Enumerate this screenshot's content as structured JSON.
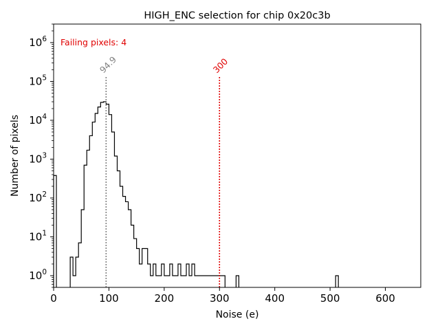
{
  "chart_data": {
    "type": "histogram",
    "title": "HIGH_ENC selection for chip 0x20c3b",
    "xlabel": "Noise (e)",
    "ylabel": "Number of pixels",
    "x_ticks": [
      0,
      100,
      200,
      300,
      400,
      500,
      600
    ],
    "y_ticks": [
      {
        "exp": "0",
        "value": 1
      },
      {
        "exp": "1",
        "value": 10
      },
      {
        "exp": "2",
        "value": 100
      },
      {
        "exp": "3",
        "value": 1000
      },
      {
        "exp": "4",
        "value": 10000
      },
      {
        "exp": "5",
        "value": 100000
      },
      {
        "exp": "6",
        "value": 1000000
      }
    ],
    "tick_base": "10",
    "xlim": [
      0,
      664
    ],
    "ylim": [
      0.5,
      3000000
    ],
    "yscale": "log",
    "bin_width": 5,
    "bins": [
      [
        0,
        5,
        380
      ],
      [
        30,
        35,
        3
      ],
      [
        35,
        40,
        1
      ],
      [
        40,
        45,
        3
      ],
      [
        45,
        50,
        7
      ],
      [
        50,
        55,
        50
      ],
      [
        55,
        60,
        700
      ],
      [
        60,
        65,
        1700
      ],
      [
        65,
        70,
        4000
      ],
      [
        70,
        75,
        9000
      ],
      [
        75,
        80,
        15000
      ],
      [
        80,
        85,
        22000
      ],
      [
        85,
        90,
        29000
      ],
      [
        90,
        95,
        30000
      ],
      [
        95,
        100,
        26000
      ],
      [
        100,
        105,
        14000
      ],
      [
        105,
        110,
        5000
      ],
      [
        110,
        115,
        1200
      ],
      [
        115,
        120,
        500
      ],
      [
        120,
        125,
        200
      ],
      [
        125,
        130,
        110
      ],
      [
        130,
        135,
        80
      ],
      [
        135,
        140,
        50
      ],
      [
        140,
        145,
        20
      ],
      [
        145,
        150,
        9
      ],
      [
        150,
        155,
        5
      ],
      [
        155,
        160,
        2
      ],
      [
        160,
        165,
        5
      ],
      [
        165,
        170,
        5
      ],
      [
        170,
        175,
        2
      ],
      [
        175,
        180,
        1
      ],
      [
        180,
        185,
        2
      ],
      [
        185,
        190,
        1
      ],
      [
        190,
        195,
        1
      ],
      [
        195,
        200,
        2
      ],
      [
        200,
        205,
        1
      ],
      [
        205,
        210,
        1
      ],
      [
        210,
        215,
        2
      ],
      [
        215,
        220,
        1
      ],
      [
        220,
        225,
        1
      ],
      [
        225,
        230,
        2
      ],
      [
        230,
        235,
        1
      ],
      [
        235,
        240,
        1
      ],
      [
        240,
        245,
        2
      ],
      [
        245,
        250,
        1
      ],
      [
        250,
        255,
        2
      ],
      [
        255,
        260,
        1
      ],
      [
        260,
        265,
        1
      ],
      [
        265,
        270,
        1
      ],
      [
        270,
        275,
        1
      ],
      [
        275,
        280,
        1
      ],
      [
        280,
        285,
        1
      ],
      [
        285,
        290,
        1
      ],
      [
        290,
        295,
        1
      ],
      [
        295,
        300,
        1
      ],
      [
        300,
        305,
        1
      ],
      [
        305,
        310,
        1
      ],
      [
        330,
        335,
        1
      ],
      [
        510,
        515,
        1
      ]
    ],
    "lines": [
      {
        "x": 94.9,
        "label": "94.9",
        "color": "#808080"
      },
      {
        "x": 300,
        "label": "300",
        "color": "#e00000"
      }
    ],
    "annotation": {
      "text": "Failing pixels: 4",
      "color": "#e00000"
    }
  }
}
